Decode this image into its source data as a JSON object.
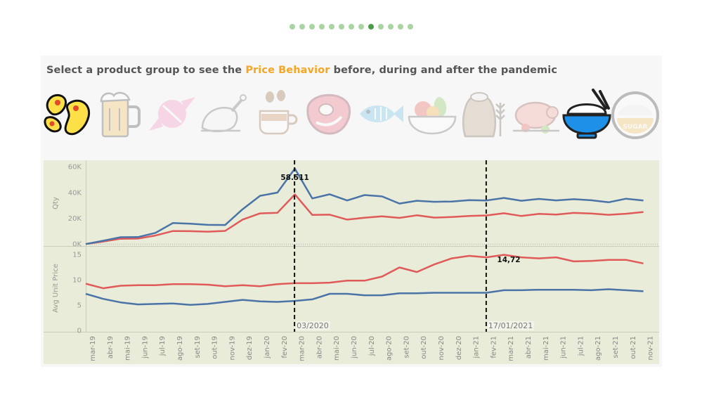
{
  "pagination": {
    "count": 13,
    "active_index": 8
  },
  "heading": {
    "prefix": "Select a product group to see the ",
    "highlight": "Price Behavior",
    "suffix": " before, during and after the pandemic"
  },
  "product_icons": [
    {
      "name": "beans-icon",
      "selected": true
    },
    {
      "name": "beer-mug-icon",
      "selected": false
    },
    {
      "name": "candy-icon",
      "selected": false
    },
    {
      "name": "chicken-icon",
      "selected": false
    },
    {
      "name": "coffee-icon",
      "selected": false
    },
    {
      "name": "meat-steak-icon",
      "selected": false
    },
    {
      "name": "fish-icon",
      "selected": false
    },
    {
      "name": "fruit-bowl-icon",
      "selected": false
    },
    {
      "name": "flour-sack-icon",
      "selected": false
    },
    {
      "name": "roast-pig-icon",
      "selected": false
    },
    {
      "name": "rice-bowl-icon",
      "selected": true
    },
    {
      "name": "sugar-bowl-icon",
      "selected": false,
      "text": "SUGAR"
    }
  ],
  "colors": {
    "blue": "#4a74a8",
    "red": "#e05a5a",
    "plot_bg": "#e8ecd8",
    "highlight": "#f5a623"
  },
  "chart_data": [
    {
      "type": "line",
      "ylabel": "Qty",
      "yticks": [
        "60K",
        "40K",
        "20K",
        "0K"
      ],
      "ytick_values": [
        60000,
        40000,
        20000,
        0
      ],
      "ylim": [
        -1500,
        65000
      ],
      "x": [
        "mar-19",
        "abr-19",
        "mai-19",
        "jun-19",
        "jul-19",
        "ago-19",
        "set-19",
        "out-19",
        "nov-19",
        "dez-19",
        "jan-20",
        "fev-20",
        "mar-20",
        "abr-20",
        "mai-20",
        "jun-20",
        "jul-20",
        "ago-20",
        "set-20",
        "out-20",
        "nov-20",
        "dez-20",
        "jan-21",
        "fev-21",
        "mar-21",
        "abr-21",
        "mai-21",
        "jun-21",
        "jul-21",
        "ago-21",
        "set-21",
        "out-21",
        "nov-21"
      ],
      "series": [
        {
          "color": "#4a74a8",
          "values": [
            0,
            2600,
            5300,
            5400,
            8700,
            16300,
            15800,
            14900,
            14800,
            27000,
            37400,
            39900,
            58511,
            35400,
            38600,
            33800,
            38000,
            37000,
            31400,
            33600,
            32800,
            33000,
            34100,
            33800,
            35800,
            33600,
            35000,
            33900,
            34800,
            34000,
            32400,
            35200,
            33800
          ]
        },
        {
          "color": "#e05a5a",
          "values": [
            0,
            2000,
            4100,
            4300,
            6600,
            10100,
            10000,
            9600,
            10200,
            19000,
            23800,
            24300,
            38500,
            22600,
            22800,
            19000,
            20400,
            21500,
            20300,
            22300,
            20500,
            21000,
            21800,
            22200,
            23900,
            21800,
            23400,
            22900,
            24200,
            23700,
            22700,
            23500,
            24900
          ]
        }
      ],
      "annotations": [
        {
          "x": "mar-20",
          "text": "58.511"
        }
      ]
    },
    {
      "type": "line",
      "ylabel": "Avg Unit Price",
      "yticks": [
        "15",
        "10",
        "5",
        "0"
      ],
      "ytick_values": [
        15,
        10,
        5,
        0
      ],
      "ylim": [
        -0.3,
        16.5
      ],
      "x": [
        "mar-19",
        "abr-19",
        "mai-19",
        "jun-19",
        "jul-19",
        "ago-19",
        "set-19",
        "out-19",
        "nov-19",
        "dez-19",
        "jan-20",
        "fev-20",
        "mar-20",
        "abr-20",
        "mai-20",
        "jun-20",
        "jul-20",
        "ago-20",
        "set-20",
        "out-20",
        "nov-20",
        "dez-20",
        "jan-21",
        "fev-21",
        "mar-21",
        "abr-21",
        "mai-21",
        "jun-21",
        "jul-21",
        "ago-21",
        "set-21",
        "out-21",
        "nov-21"
      ],
      "xticks": [
        "mar-19",
        "abr-19",
        "mai-19",
        "jun-19",
        "jul-19",
        "ago-19",
        "set-19",
        "out-19",
        "nov-19",
        "dez-19",
        "jan-20",
        "fev-20",
        "mar-20",
        "abr-20",
        "mai-20",
        "jun-20",
        "jul-20",
        "ago-20",
        "set-20",
        "out-20",
        "nov-20",
        "dez-20",
        "jan-21",
        "fev-21",
        "mar-21",
        "abr-21",
        "mai-21",
        "jun-21",
        "jul-21",
        "ago-21",
        "set-21",
        "out-21",
        "nov-21"
      ],
      "series": [
        {
          "color": "#e05a5a",
          "values": [
            9.2,
            8.3,
            8.8,
            8.9,
            8.9,
            9.1,
            9.1,
            9.0,
            8.7,
            8.9,
            8.7,
            9.1,
            9.3,
            9.3,
            9.4,
            9.8,
            9.8,
            10.6,
            12.4,
            11.5,
            13.0,
            14.2,
            14.7,
            14.4,
            14.9,
            14.4,
            14.2,
            14.4,
            13.6,
            13.7,
            13.9,
            13.9,
            13.2
          ]
        },
        {
          "color": "#4a74a8",
          "values": [
            7.2,
            6.2,
            5.5,
            5.1,
            5.2,
            5.3,
            5.0,
            5.2,
            5.6,
            6.0,
            5.7,
            5.6,
            5.8,
            6.1,
            7.2,
            7.2,
            6.9,
            6.9,
            7.3,
            7.3,
            7.4,
            7.4,
            7.4,
            7.4,
            7.9,
            7.9,
            8.0,
            8.0,
            8.0,
            7.9,
            8.1,
            7.9,
            7.7
          ]
        }
      ],
      "annotations": [
        {
          "x": "fev-21",
          "text": "14,72"
        }
      ]
    }
  ],
  "reference_lines": [
    {
      "x": "mar-20",
      "label": "03/2020"
    },
    {
      "x": "fev-21",
      "label": "17/01/2021"
    }
  ]
}
